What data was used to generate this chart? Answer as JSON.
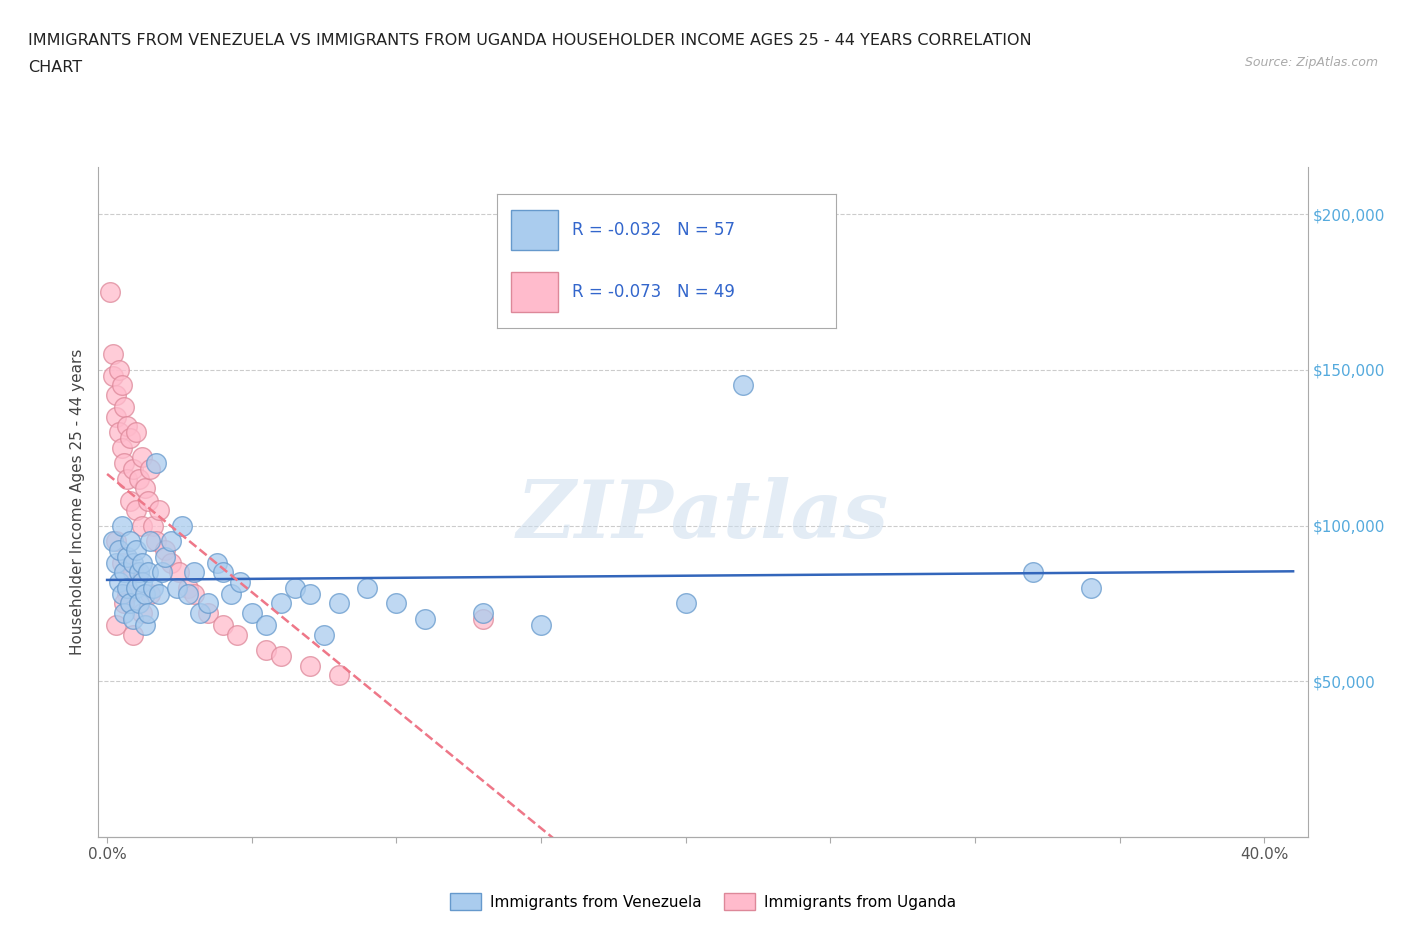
{
  "title_line1": "IMMIGRANTS FROM VENEZUELA VS IMMIGRANTS FROM UGANDA HOUSEHOLDER INCOME AGES 25 - 44 YEARS CORRELATION",
  "title_line2": "CHART",
  "source": "Source: ZipAtlas.com",
  "ylabel": "Householder Income Ages 25 - 44 years",
  "xlim": [
    -0.003,
    0.415
  ],
  "ylim": [
    0,
    215000
  ],
  "ytick_values": [
    0,
    50000,
    100000,
    150000,
    200000
  ],
  "ytick_labels_right": [
    "",
    "$50,000",
    "$100,000",
    "$150,000",
    "$200,000"
  ],
  "xtick_positions": [
    0.0,
    0.05,
    0.1,
    0.15,
    0.2,
    0.25,
    0.3,
    0.35,
    0.4
  ],
  "xtick_labels": [
    "0.0%",
    "",
    "",
    "",
    "",
    "",
    "",
    "",
    "40.0%"
  ],
  "venezuela_color": "#aaccee",
  "venezuela_edge": "#6699cc",
  "uganda_color": "#ffbbcc",
  "uganda_edge": "#dd8899",
  "venezuela_line_color": "#3366bb",
  "uganda_line_color": "#ee7788",
  "legend_r_venezuela": "R = -0.032",
  "legend_n_venezuela": "N = 57",
  "legend_r_uganda": "R = -0.073",
  "legend_n_uganda": "N = 49",
  "legend_label_venezuela": "Immigrants from Venezuela",
  "legend_label_uganda": "Immigrants from Uganda",
  "grid_color": "#cccccc",
  "watermark": "ZIPatlas",
  "venezuela_x": [
    0.002,
    0.003,
    0.004,
    0.004,
    0.005,
    0.005,
    0.006,
    0.006,
    0.007,
    0.007,
    0.008,
    0.008,
    0.009,
    0.009,
    0.01,
    0.01,
    0.011,
    0.011,
    0.012,
    0.012,
    0.013,
    0.013,
    0.014,
    0.014,
    0.015,
    0.016,
    0.017,
    0.018,
    0.019,
    0.02,
    0.022,
    0.024,
    0.026,
    0.028,
    0.03,
    0.032,
    0.035,
    0.038,
    0.04,
    0.043,
    0.046,
    0.05,
    0.055,
    0.06,
    0.065,
    0.07,
    0.075,
    0.08,
    0.09,
    0.1,
    0.11,
    0.13,
    0.15,
    0.2,
    0.22,
    0.32,
    0.34
  ],
  "venezuela_y": [
    95000,
    88000,
    92000,
    82000,
    100000,
    78000,
    85000,
    72000,
    90000,
    80000,
    95000,
    75000,
    88000,
    70000,
    92000,
    80000,
    85000,
    75000,
    88000,
    82000,
    78000,
    68000,
    85000,
    72000,
    95000,
    80000,
    120000,
    78000,
    85000,
    90000,
    95000,
    80000,
    100000,
    78000,
    85000,
    72000,
    75000,
    88000,
    85000,
    78000,
    82000,
    72000,
    68000,
    75000,
    80000,
    78000,
    65000,
    75000,
    80000,
    75000,
    70000,
    72000,
    68000,
    75000,
    145000,
    85000,
    80000
  ],
  "uganda_x": [
    0.001,
    0.002,
    0.002,
    0.003,
    0.003,
    0.004,
    0.004,
    0.005,
    0.005,
    0.006,
    0.006,
    0.007,
    0.007,
    0.008,
    0.008,
    0.009,
    0.01,
    0.01,
    0.011,
    0.012,
    0.012,
    0.013,
    0.014,
    0.015,
    0.016,
    0.017,
    0.018,
    0.02,
    0.022,
    0.025,
    0.028,
    0.03,
    0.035,
    0.04,
    0.045,
    0.055,
    0.06,
    0.07,
    0.08,
    0.003,
    0.005,
    0.007,
    0.009,
    0.012,
    0.015,
    0.003,
    0.006,
    0.009,
    0.13
  ],
  "uganda_y": [
    175000,
    155000,
    148000,
    142000,
    135000,
    150000,
    130000,
    145000,
    125000,
    138000,
    120000,
    132000,
    115000,
    128000,
    108000,
    118000,
    130000,
    105000,
    115000,
    122000,
    100000,
    112000,
    108000,
    118000,
    100000,
    95000,
    105000,
    92000,
    88000,
    85000,
    80000,
    78000,
    72000,
    68000,
    65000,
    60000,
    58000,
    55000,
    52000,
    95000,
    88000,
    78000,
    85000,
    72000,
    78000,
    68000,
    75000,
    65000,
    70000
  ]
}
